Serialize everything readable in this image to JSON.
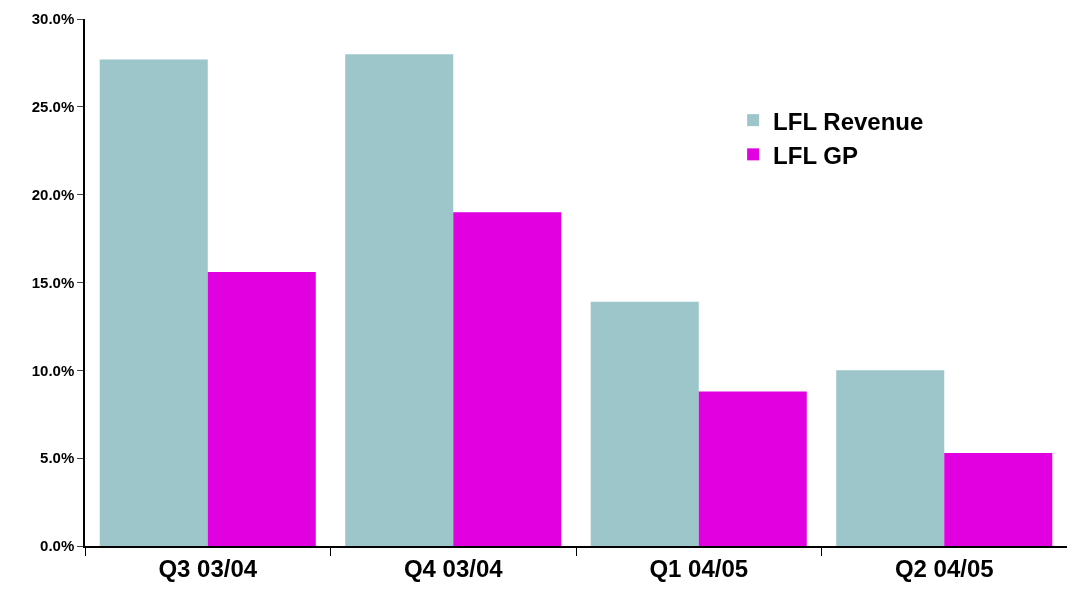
{
  "chart_data": {
    "type": "bar",
    "categories": [
      "Q3 03/04",
      "Q4 03/04",
      "Q1 04/05",
      "Q2 04/05"
    ],
    "series": [
      {
        "name": "LFL Revenue",
        "color": "#9cc6ca",
        "values": [
          27.7,
          28.0,
          13.9,
          10.0
        ]
      },
      {
        "name": "LFL GP",
        "color": "#e000e0",
        "values": [
          15.6,
          19.0,
          8.8,
          5.3
        ]
      }
    ],
    "ylim": [
      0,
      30
    ],
    "yticks": [
      {
        "value": 0,
        "label": "0.0%"
      },
      {
        "value": 5,
        "label": "5.0%"
      },
      {
        "value": 10,
        "label": "10.0%"
      },
      {
        "value": 15,
        "label": "15.0%"
      },
      {
        "value": 20,
        "label": "20.0%"
      },
      {
        "value": 25,
        "label": "25.0%"
      },
      {
        "value": 30,
        "label": "30.0%"
      }
    ],
    "legend": "top right"
  }
}
